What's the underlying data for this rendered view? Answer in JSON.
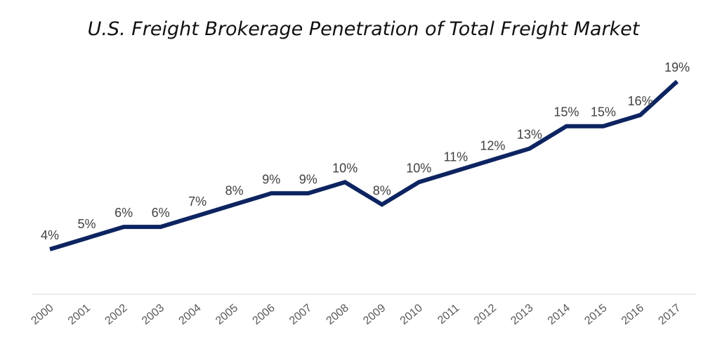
{
  "chart_data": {
    "type": "line",
    "title": "U.S. Freight Brokerage Penetration of Total Freight Market",
    "xlabel": "",
    "ylabel": "",
    "categories": [
      "2000",
      "2001",
      "2002",
      "2003",
      "2004",
      "2005",
      "2006",
      "2007",
      "2008",
      "2009",
      "2010",
      "2011",
      "2012",
      "2013",
      "2014",
      "2015",
      "2016",
      "2017"
    ],
    "series": [
      {
        "values": [
          4,
          5,
          6,
          6,
          7,
          8,
          9,
          9,
          10,
          8,
          10,
          11,
          12,
          13,
          15,
          15,
          16,
          19
        ],
        "labels": [
          "4%",
          "5%",
          "6%",
          "6%",
          "7%",
          "8%",
          "9%",
          "9%",
          "10%",
          "8%",
          "10%",
          "11%",
          "12%",
          "13%",
          "15%",
          "15%",
          "16%",
          "19%"
        ]
      }
    ],
    "ylim": [
      0,
      20
    ],
    "grid": false,
    "legend": "none",
    "line_color": "#0d2461",
    "axis_color": "#d9d9d9"
  }
}
